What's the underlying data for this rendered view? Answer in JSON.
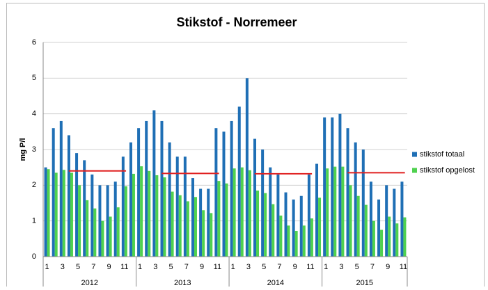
{
  "chart_data": {
    "type": "bar",
    "title": "Stikstof - Norremeer",
    "y_label": "mg P/l",
    "ylim": [
      0,
      6
    ],
    "yticks": [
      0,
      1,
      2,
      3,
      4,
      5,
      6
    ],
    "grid": true,
    "legend": "right",
    "category_groups": [
      {
        "name": "2012",
        "categories": [
          "1",
          null,
          "3",
          null,
          "5",
          null,
          "7",
          null,
          "9",
          null,
          "11",
          null
        ]
      },
      {
        "name": "2013",
        "categories": [
          "1",
          null,
          "3",
          null,
          "5",
          null,
          "7",
          null,
          "9",
          null,
          "11",
          null
        ]
      },
      {
        "name": "2014",
        "categories": [
          "1",
          null,
          "3",
          null,
          "5",
          null,
          "7",
          null,
          "9",
          null,
          "11",
          null
        ]
      },
      {
        "name": "2015",
        "categories": [
          "1",
          null,
          "3",
          null,
          "5",
          null,
          "7",
          null,
          "9",
          null,
          "11"
        ]
      }
    ],
    "series": [
      {
        "name": "stikstof totaal",
        "color": "#1f6fb5",
        "values": [
          2.5,
          3.6,
          3.8,
          3.4,
          2.9,
          2.7,
          2.3,
          2.0,
          2.0,
          2.1,
          2.8,
          3.2,
          3.6,
          3.8,
          4.1,
          3.8,
          3.2,
          2.8,
          2.8,
          2.2,
          1.9,
          1.9,
          3.6,
          3.5,
          3.8,
          4.2,
          5.0,
          3.3,
          3.0,
          2.5,
          2.3,
          1.8,
          1.6,
          1.7,
          2.3,
          2.6,
          3.9,
          3.9,
          4.0,
          3.6,
          3.2,
          3.0,
          2.1,
          1.6,
          2.0,
          1.9,
          2.1
        ]
      },
      {
        "name": "stikstof opgelost",
        "color": "#4fd14f",
        "values": [
          2.45,
          2.35,
          2.43,
          2.35,
          2.0,
          1.58,
          1.35,
          1.0,
          1.12,
          1.38,
          1.97,
          2.32,
          2.53,
          2.4,
          2.28,
          2.22,
          1.82,
          1.72,
          1.55,
          1.67,
          1.3,
          1.22,
          2.12,
          2.05,
          2.47,
          2.5,
          2.42,
          1.85,
          1.78,
          1.47,
          1.15,
          0.87,
          0.72,
          0.87,
          1.07,
          1.65,
          2.47,
          2.52,
          2.52,
          2.0,
          1.7,
          1.45,
          1.0,
          0.75,
          1.12,
          0.93,
          1.1
        ]
      }
    ],
    "reference_lines": {
      "color": "#e02020",
      "values": [
        2.4,
        2.33,
        2.32,
        2.35
      ]
    }
  }
}
